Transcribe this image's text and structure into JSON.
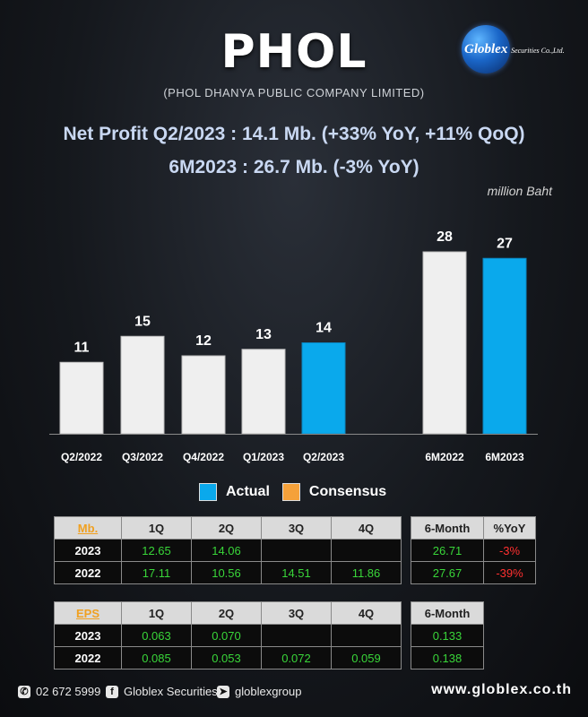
{
  "header": {
    "ticker": "PHOL",
    "company": "(PHOL DHANYA PUBLIC COMPANY LIMITED)",
    "logo_text": "Globlex",
    "logo_sub": "Securities Co.,Ltd.",
    "headline1": "Net Profit  Q2/2023 : 14.1 Mb. (+33% YoY, +11% QoQ)",
    "headline2": "6M2023 : 26.7 Mb. (-3% YoY)",
    "unit": "million Baht"
  },
  "chart_data": {
    "type": "bar",
    "categories": [
      "Q2/2022",
      "Q3/2022",
      "Q4/2022",
      "Q1/2023",
      "Q2/2023",
      "6M2022",
      "6M2023"
    ],
    "values": [
      11,
      15,
      12,
      13,
      14,
      28,
      27
    ],
    "value_labels": [
      "11",
      "15",
      "12",
      "13",
      "14",
      "28",
      "27"
    ],
    "bar_kind": [
      "past",
      "past",
      "past",
      "past",
      "actual",
      "past",
      "actual"
    ],
    "colors": {
      "past": "#efefef",
      "actual": "#0aa9ec",
      "consensus": "#f5a13a"
    },
    "legend": [
      {
        "label": "Actual",
        "color": "#0aa9ec"
      },
      {
        "label": "Consensus",
        "color": "#f5a13a"
      }
    ],
    "title": "",
    "xlabel": "",
    "ylabel": "million Baht"
  },
  "profit_table": {
    "corner": "Mb.",
    "headers": [
      "1Q",
      "2Q",
      "3Q",
      "4Q"
    ],
    "rows": [
      {
        "year": "2023",
        "cells": [
          "12.65",
          "14.06",
          "",
          ""
        ]
      },
      {
        "year": "2022",
        "cells": [
          "17.11",
          "10.56",
          "14.51",
          "11.86"
        ]
      }
    ]
  },
  "profit_6m_table": {
    "headers": [
      "6-Month",
      "%YoY"
    ],
    "rows": [
      {
        "cells": [
          "26.71",
          "-3%"
        ]
      },
      {
        "cells": [
          "27.67",
          "-39%"
        ]
      }
    ]
  },
  "eps_table": {
    "corner": "EPS",
    "headers": [
      "1Q",
      "2Q",
      "3Q",
      "4Q"
    ],
    "rows": [
      {
        "year": "2023",
        "cells": [
          "0.063",
          "0.070",
          "",
          ""
        ]
      },
      {
        "year": "2022",
        "cells": [
          "0.085",
          "0.053",
          "0.072",
          "0.059"
        ]
      }
    ]
  },
  "eps_6m_table": {
    "headers": [
      "6-Month"
    ],
    "rows": [
      {
        "cells": [
          "0.133"
        ]
      },
      {
        "cells": [
          "0.138"
        ]
      }
    ]
  },
  "footer": {
    "phone": "02 672 5999",
    "facebook": "Globlex Securities",
    "telegram": "globlexgroup",
    "website": "www.globlex.co.th"
  }
}
